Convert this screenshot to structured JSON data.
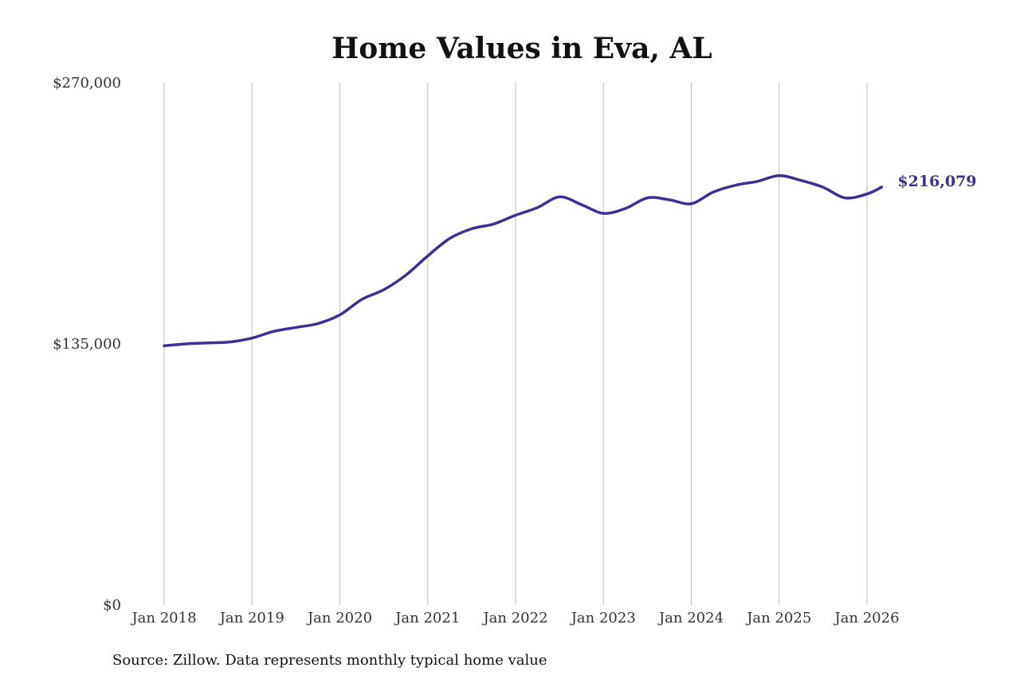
{
  "colors": {
    "line": "#3b3192",
    "grid": "#bdbdbd",
    "text": "#333333"
  },
  "chart_data": {
    "type": "line",
    "title": "Home Values in Eva, AL",
    "xlabel": "",
    "ylabel": "",
    "ylim": [
      0,
      270000
    ],
    "y_ticks": [
      {
        "value": 270000,
        "label": "$270,000"
      },
      {
        "value": 135000,
        "label": "$135,000"
      },
      {
        "value": 0,
        "label": "$0"
      }
    ],
    "x_ticks": [
      {
        "value": "2018-01",
        "label": "Jan 2018"
      },
      {
        "value": "2019-01",
        "label": "Jan 2019"
      },
      {
        "value": "2020-01",
        "label": "Jan 2020"
      },
      {
        "value": "2021-01",
        "label": "Jan 2021"
      },
      {
        "value": "2022-01",
        "label": "Jan 2022"
      },
      {
        "value": "2023-01",
        "label": "Jan 2023"
      },
      {
        "value": "2024-01",
        "label": "Jan 2024"
      },
      {
        "value": "2025-01",
        "label": "Jan 2025"
      },
      {
        "value": "2026-01",
        "label": "Jan 2026"
      }
    ],
    "grid": "vertical",
    "end_label": "$216,079",
    "series": [
      {
        "x": [
          "2018-01",
          "2018-04",
          "2018-07",
          "2018-10",
          "2019-01",
          "2019-04",
          "2019-07",
          "2019-10",
          "2020-01",
          "2020-04",
          "2020-07",
          "2020-10",
          "2021-01",
          "2021-04",
          "2021-07",
          "2021-10",
          "2022-01",
          "2022-04",
          "2022-07",
          "2022-10",
          "2023-01",
          "2023-04",
          "2023-07",
          "2023-10",
          "2024-01",
          "2024-04",
          "2024-07",
          "2024-10",
          "2025-01",
          "2025-04",
          "2025-07",
          "2025-10",
          "2026-01",
          "2026-03"
        ],
        "y": [
          134000,
          135000,
          135500,
          136000,
          138000,
          141500,
          143500,
          145500,
          150000,
          158000,
          163000,
          170500,
          180500,
          189500,
          194500,
          197000,
          201500,
          205500,
          211000,
          207000,
          202500,
          205000,
          210500,
          209500,
          207500,
          213500,
          217000,
          219000,
          222000,
          219500,
          216000,
          210500,
          212500,
          216079
        ]
      }
    ]
  },
  "footer": {
    "source": "Source: Zillow. Data represents monthly typical home value"
  }
}
